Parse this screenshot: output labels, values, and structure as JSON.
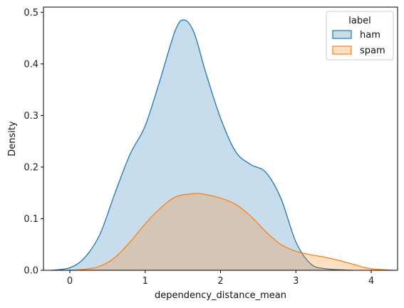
{
  "chart_data": {
    "type": "area",
    "title": "",
    "xlabel": "dependency_distance_mean",
    "ylabel": "Density",
    "xlim": [
      -0.35,
      4.35
    ],
    "ylim": [
      0,
      0.51
    ],
    "x_ticks": [
      0,
      1,
      2,
      3,
      4
    ],
    "x_tick_labels": [
      "0",
      "1",
      "2",
      "3",
      "4"
    ],
    "y_ticks": [
      0,
      0.1,
      0.2,
      0.3,
      0.4,
      0.5
    ],
    "y_tick_labels": [
      "0.0",
      "0.1",
      "0.2",
      "0.3",
      "0.4",
      "0.5"
    ],
    "grid": false,
    "legend": {
      "title": "label",
      "placement": "top-right"
    },
    "series": [
      {
        "name": "ham",
        "color": "#1f77b4",
        "x": [
          -0.25,
          0,
          0.2,
          0.4,
          0.6,
          0.8,
          1.0,
          1.2,
          1.4,
          1.52,
          1.65,
          1.8,
          2.0,
          2.2,
          2.4,
          2.6,
          2.8,
          3.0,
          3.2,
          3.4,
          3.6,
          3.75
        ],
        "y": [
          0.0,
          0.005,
          0.025,
          0.07,
          0.15,
          0.225,
          0.28,
          0.37,
          0.465,
          0.485,
          0.46,
          0.385,
          0.295,
          0.23,
          0.205,
          0.19,
          0.14,
          0.055,
          0.012,
          0.003,
          0.001,
          0.0
        ]
      },
      {
        "name": "spam",
        "color": "#ff7f0e",
        "x": [
          0.0,
          0.2,
          0.4,
          0.6,
          0.8,
          1.0,
          1.2,
          1.4,
          1.6,
          1.7,
          1.8,
          2.0,
          2.2,
          2.4,
          2.6,
          2.8,
          3.0,
          3.2,
          3.4,
          3.6,
          3.8,
          4.0,
          4.3
        ],
        "y": [
          0.0,
          0.002,
          0.008,
          0.025,
          0.055,
          0.09,
          0.12,
          0.142,
          0.148,
          0.149,
          0.147,
          0.14,
          0.128,
          0.105,
          0.075,
          0.05,
          0.037,
          0.03,
          0.025,
          0.018,
          0.01,
          0.003,
          0.0
        ]
      }
    ]
  }
}
